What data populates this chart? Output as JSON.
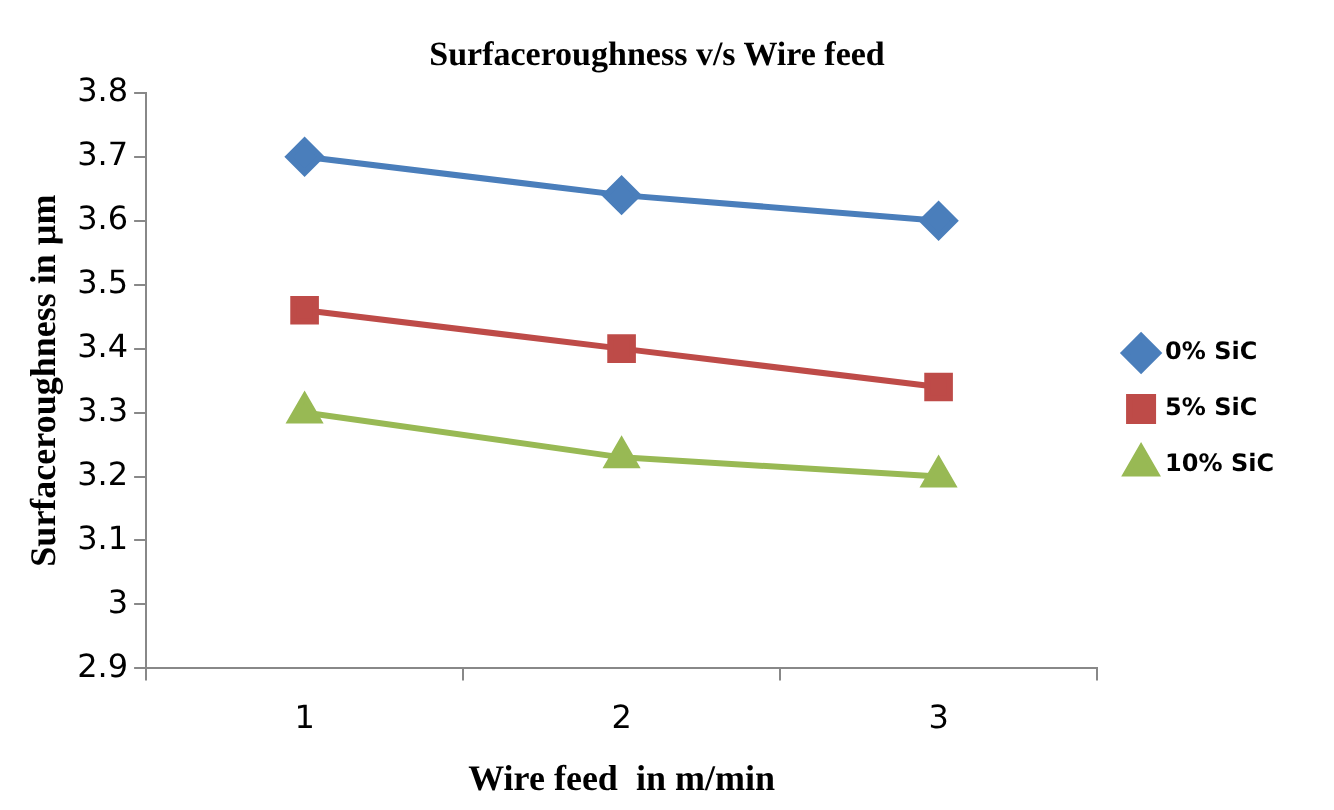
{
  "chart_data": {
    "type": "line",
    "title": "Surfaceroughness v/s Wire feed",
    "xlabel": "Wire feed  in m/min",
    "ylabel": "Surfaceroughness in µm",
    "categories": [
      "1",
      "2",
      "3"
    ],
    "series": [
      {
        "name": "0% SiC",
        "color": "#4a7ebb",
        "marker": "diamond",
        "values": [
          3.7,
          3.64,
          3.6
        ]
      },
      {
        "name": "5% SiC",
        "color": "#be4b48",
        "marker": "square",
        "values": [
          3.46,
          3.4,
          3.34
        ]
      },
      {
        "name": "10% SiC",
        "color": "#98b954",
        "marker": "triangle",
        "values": [
          3.3,
          3.23,
          3.2
        ]
      }
    ],
    "ylim": [
      2.9,
      3.8
    ],
    "yticks": [
      2.9,
      3,
      3.1,
      3.2,
      3.3,
      3.4,
      3.5,
      3.6,
      3.7,
      3.8
    ],
    "grid": false,
    "legend": "right",
    "line_style": "solid"
  }
}
